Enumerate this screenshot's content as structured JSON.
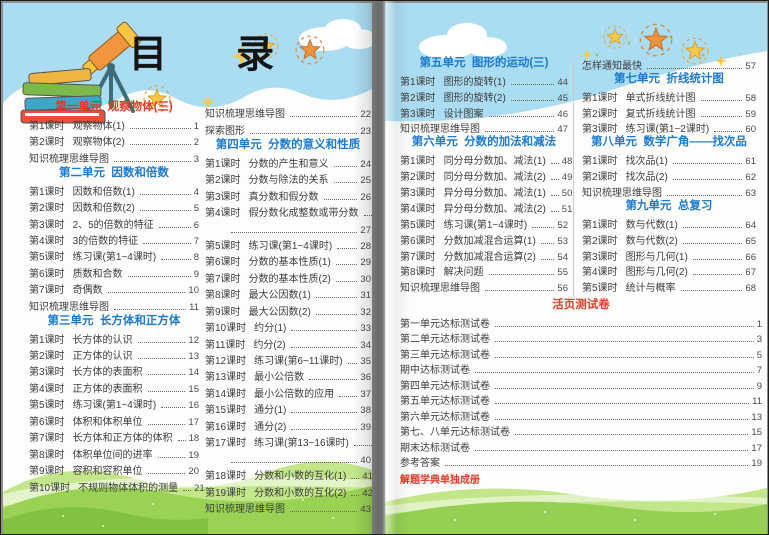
{
  "page_title": "目  录",
  "colors": {
    "header_blue": "#1d7ad0",
    "header_red": "#df3b28",
    "sky_blue": "#aadcf2",
    "grass_light": "#b9e078",
    "grass_dark": "#96d052",
    "body_text": "#3d3d3d"
  },
  "decorations": [
    "telescope-illustration",
    "books-stack-illustration",
    "stars",
    "clouds",
    "grass-hills"
  ],
  "left_page": {
    "columns": [
      [
        {
          "header": "第一单元  观察物体(三)",
          "color": "red",
          "items": [
            {
              "label": "第1课时",
              "title": "观察物体(1)",
              "page": "1"
            },
            {
              "label": "第2课时",
              "title": "观察物体(2)",
              "page": "2"
            },
            {
              "label": "",
              "title": "知识梳理思维导图",
              "page": "3"
            }
          ]
        },
        {
          "header": "第二单元  因数和倍数",
          "color": "blue",
          "items": [
            {
              "label": "第1课时",
              "title": "因数和倍数(1)",
              "page": "4"
            },
            {
              "label": "第2课时",
              "title": "因数和倍数(2)",
              "page": "5"
            },
            {
              "label": "第3课时",
              "title": "2、5的倍数的特征",
              "page": "6"
            },
            {
              "label": "第4课时",
              "title": "3的倍数的特征",
              "page": "7"
            },
            {
              "label": "第5课时",
              "title": "练习课(第1~4课时)",
              "page": "8"
            },
            {
              "label": "第6课时",
              "title": "质数和合数",
              "page": "9"
            },
            {
              "label": "第7课时",
              "title": "奇偶数",
              "page": "10"
            },
            {
              "label": "",
              "title": "知识梳理思维导图",
              "page": "11"
            }
          ]
        },
        {
          "header": "第三单元  长方体和正方体",
          "color": "blue",
          "items": [
            {
              "label": "第1课时",
              "title": "长方体的认识",
              "page": "12"
            },
            {
              "label": "第2课时",
              "title": "正方体的认识",
              "page": "13"
            },
            {
              "label": "第3课时",
              "title": "长方体的表面积",
              "page": "14"
            },
            {
              "label": "第4课时",
              "title": "正方体的表面积",
              "page": "15"
            },
            {
              "label": "第5课时",
              "title": "练习课(第1~4课时)",
              "page": "16"
            },
            {
              "label": "第6课时",
              "title": "体积和体积单位",
              "page": "17"
            },
            {
              "label": "第7课时",
              "title": "长方体和正方体的体积",
              "page": "18"
            },
            {
              "label": "第8课时",
              "title": "体积单位间的进率",
              "page": "19"
            },
            {
              "label": "第9课时",
              "title": "容积和容积单位",
              "page": "20"
            },
            {
              "label": "第10课时",
              "title": "不规则物体体积的测量",
              "page": "21"
            }
          ]
        }
      ],
      [
        {
          "items": [
            {
              "label": "",
              "title": "知识梳理思维导图",
              "page": "22"
            },
            {
              "label": "",
              "title": "探索图形",
              "page": "23"
            }
          ]
        },
        {
          "header": "第四单元  分数的意义和性质",
          "color": "blue",
          "items": [
            {
              "label": "第1课时",
              "title": "分数的产生和意义",
              "page": "24"
            },
            {
              "label": "第2课时",
              "title": "分数与除法的关系",
              "page": "25"
            },
            {
              "label": "第3课时",
              "title": "真分数和假分数",
              "page": "26"
            },
            {
              "label": "第4课时",
              "title": "假分数化成整数或带分数",
              "page": "27",
              "wrap": true
            },
            {
              "label": "第5课时",
              "title": "练习课(第1~4课时)",
              "page": "28"
            },
            {
              "label": "第6课时",
              "title": "分数的基本性质(1)",
              "page": "29"
            },
            {
              "label": "第7课时",
              "title": "分数的基本性质(2)",
              "page": "30"
            },
            {
              "label": "第8课时",
              "title": "最大公因数(1)",
              "page": "31"
            },
            {
              "label": "第9课时",
              "title": "最大公因数(2)",
              "page": "32"
            },
            {
              "label": "第10课时",
              "title": "约分(1)",
              "page": "33"
            },
            {
              "label": "第11课时",
              "title": "约分(2)",
              "page": "34"
            },
            {
              "label": "第12课时",
              "title": "练习课(第6~11课时)",
              "page": "35"
            },
            {
              "label": "第13课时",
              "title": "最小公倍数",
              "page": "36"
            },
            {
              "label": "第14课时",
              "title": "最小公倍数的应用",
              "page": "37"
            },
            {
              "label": "第15课时",
              "title": "通分(1)",
              "page": "38"
            },
            {
              "label": "第16课时",
              "title": "通分(2)",
              "page": "39"
            },
            {
              "label": "第17课时",
              "title": "练习课(第13~16课时)",
              "page": "40",
              "wrap": true
            },
            {
              "label": "第18课时",
              "title": "分数和小数的互化(1)",
              "page": "41"
            },
            {
              "label": "第19课时",
              "title": "分数和小数的互化(2)",
              "page": "42"
            },
            {
              "label": "",
              "title": "知识梳理思维导图",
              "page": "43"
            }
          ]
        }
      ]
    ]
  },
  "right_page": {
    "columns": [
      [
        {
          "header": "第五单元  图形的运动(三)",
          "color": "blue",
          "items": [
            {
              "label": "第1课时",
              "title": "图形的旋转(1)",
              "page": "44"
            },
            {
              "label": "第2课时",
              "title": "图形的旋转(2)",
              "page": "45"
            },
            {
              "label": "第3课时",
              "title": "设计图案",
              "page": "46"
            },
            {
              "label": "",
              "title": "知识梳理思维导图",
              "page": "47"
            }
          ]
        },
        {
          "header": "第六单元  分数的加法和减法",
          "color": "blue",
          "items": [
            {
              "label": "第1课时",
              "title": "同分母分数加、减法(1)",
              "page": "48"
            },
            {
              "label": "第2课时",
              "title": "同分母分数加、减法(2)",
              "page": "49"
            },
            {
              "label": "第3课时",
              "title": "异分母分数加、减法(1)",
              "page": "50"
            },
            {
              "label": "第4课时",
              "title": "异分母分数加、减法(2)",
              "page": "51"
            },
            {
              "label": "第5课时",
              "title": "练习课(第1~4课时)",
              "page": "52"
            },
            {
              "label": "第6课时",
              "title": "分数加减混合运算(1)",
              "page": "53"
            },
            {
              "label": "第7课时",
              "title": "分数加减混合运算(2)",
              "page": "54"
            },
            {
              "label": "第8课时",
              "title": "解决问题",
              "page": "55"
            },
            {
              "label": "",
              "title": "知识梳理思维导图",
              "page": "56"
            }
          ]
        }
      ],
      [
        {
          "items": [
            {
              "label": "",
              "title": "怎样通知最快",
              "page": "57"
            }
          ]
        },
        {
          "header": "第七单元  折线统计图",
          "color": "blue",
          "items": [
            {
              "label": "第1课时",
              "title": "单式折线统计图",
              "page": "58"
            },
            {
              "label": "第2课时",
              "title": "复式折线统计图",
              "page": "59"
            },
            {
              "label": "第3课时",
              "title": "练习课(第1~2课时)",
              "page": "60"
            }
          ]
        },
        {
          "header": "第八单元  数学广角——找次品",
          "color": "blue",
          "items": [
            {
              "label": "第1课时",
              "title": "找次品(1)",
              "page": "61"
            },
            {
              "label": "第2课时",
              "title": "找次品(2)",
              "page": "62"
            },
            {
              "label": "",
              "title": "知识梳理思维导图",
              "page": "63"
            }
          ]
        },
        {
          "header": "第九单元  总复习",
          "color": "blue",
          "items": [
            {
              "label": "第1课时",
              "title": "数与代数(1)",
              "page": "64"
            },
            {
              "label": "第2课时",
              "title": "数与代数(2)",
              "page": "65"
            },
            {
              "label": "第3课时",
              "title": "图形与几何(1)",
              "page": "66"
            },
            {
              "label": "第4课时",
              "title": "图形与几何(2)",
              "page": "67"
            },
            {
              "label": "第5课时",
              "title": "统计与概率",
              "page": "68"
            }
          ]
        }
      ]
    ],
    "bottom": {
      "header": "活页测试卷",
      "items": [
        {
          "label": "",
          "title": "第一单元达标测试卷",
          "page": "1"
        },
        {
          "label": "",
          "title": "第二单元达标测试卷",
          "page": "3"
        },
        {
          "label": "",
          "title": "第三单元达标测试卷",
          "page": "5"
        },
        {
          "label": "",
          "title": "期中达标测试卷",
          "page": "7"
        },
        {
          "label": "",
          "title": "第四单元达标测试卷",
          "page": "9"
        },
        {
          "label": "",
          "title": "第五单元达标测试卷",
          "page": "11"
        },
        {
          "label": "",
          "title": "第六单元达标测试卷",
          "page": "13"
        },
        {
          "label": "",
          "title": "第七、八单元达标测试卷",
          "page": "15"
        },
        {
          "label": "",
          "title": "期末达标测试卷",
          "page": "17"
        },
        {
          "label": "",
          "title": "参考答案",
          "page": "19"
        }
      ]
    },
    "footnote": "解题学典单独成册"
  }
}
